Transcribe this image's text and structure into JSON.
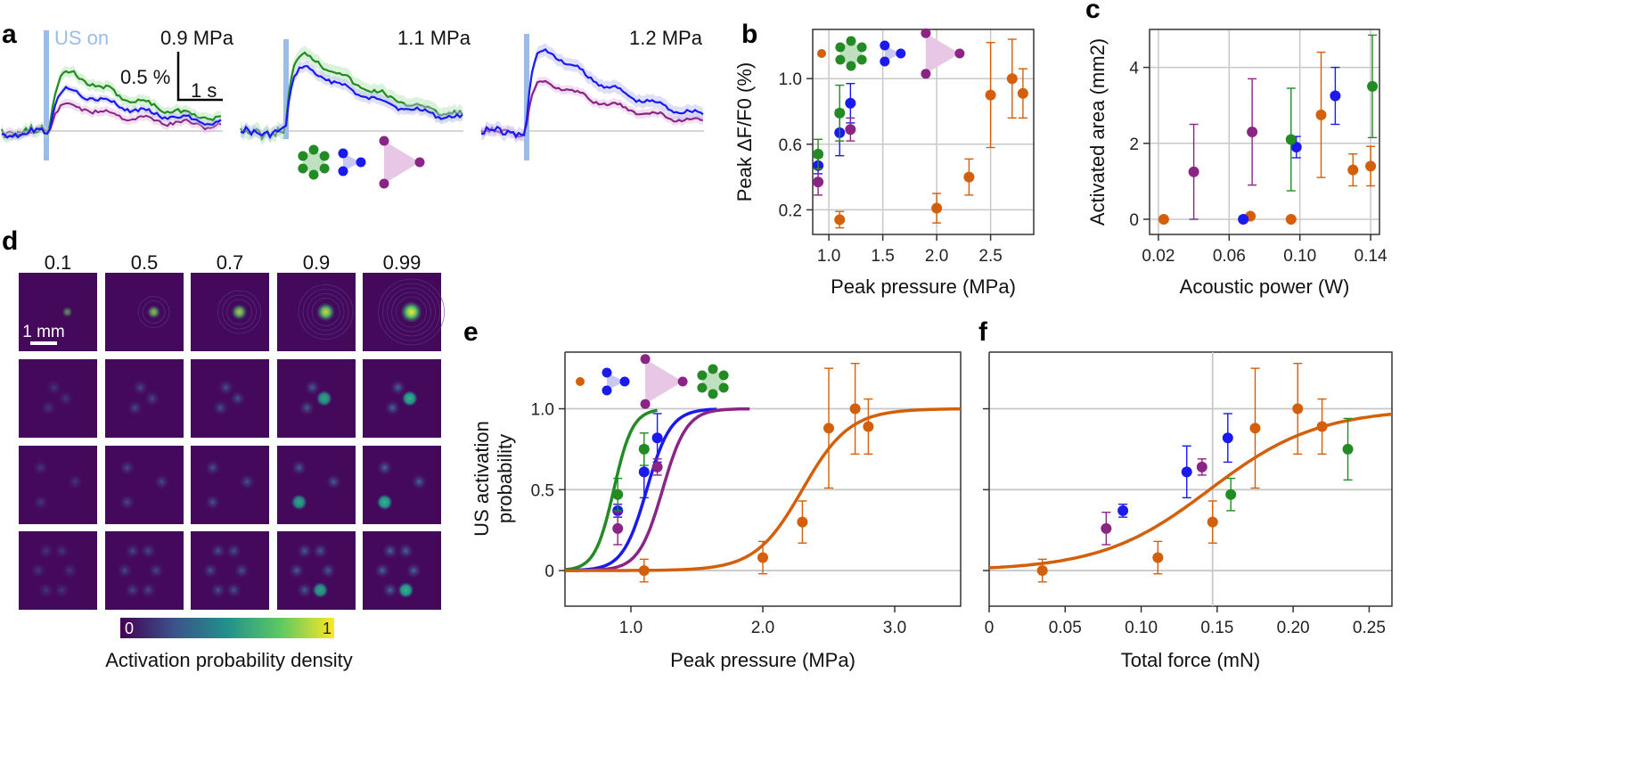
{
  "colors": {
    "orange": "#d45f0a",
    "blue": "#1a1aee",
    "purple": "#8a2586",
    "green": "#238b23",
    "grid": "#c8c8c8",
    "usbar": "#9bbce8"
  },
  "panel_labels": [
    "a",
    "b",
    "c",
    "d",
    "e",
    "f"
  ],
  "panel_a": {
    "us_label": "US on",
    "pressures": [
      "0.9 MPa",
      "1.1 MPa",
      "1.2 MPa"
    ],
    "scale_y": "0.5 %",
    "scale_x": "1 s"
  },
  "chart_data": [
    {
      "panel": "b",
      "type": "scatter",
      "xlabel": "Peak pressure (MPa)",
      "ylabel": "Peak ΔF/F0 (%)",
      "xlim": [
        0.85,
        2.9
      ],
      "ylim": [
        0.05,
        1.3
      ],
      "xticks": [
        "1.0",
        "1.5",
        "2.0",
        "2.5"
      ],
      "yticks": [
        "0.2",
        "0.6",
        "1.0"
      ],
      "series": [
        {
          "name": "single",
          "color": "orange",
          "points": [
            [
              1.1,
              0.14,
              0.05
            ],
            [
              2.0,
              0.21,
              0.09
            ],
            [
              2.3,
              0.4,
              0.11
            ],
            [
              2.5,
              0.9,
              0.32
            ],
            [
              2.7,
              1.0,
              0.24
            ],
            [
              2.8,
              0.91,
              0.15
            ]
          ]
        },
        {
          "name": "trimer-small",
          "color": "blue",
          "points": [
            [
              0.9,
              0.47,
              0.05
            ],
            [
              1.1,
              0.67,
              0.14
            ],
            [
              1.2,
              0.85,
              0.12
            ]
          ]
        },
        {
          "name": "trimer-large",
          "color": "purple",
          "points": [
            [
              0.9,
              0.37,
              0.08
            ],
            [
              1.2,
              0.69,
              0.07
            ]
          ]
        },
        {
          "name": "hexamer",
          "color": "green",
          "points": [
            [
              0.9,
              0.54,
              0.09
            ],
            [
              1.1,
              0.79,
              0.17
            ]
          ]
        }
      ]
    },
    {
      "panel": "c",
      "type": "scatter",
      "xlabel": "Acoustic power (W)",
      "ylabel": "Activated area (mm2)",
      "xlim": [
        0.015,
        0.145
      ],
      "ylim": [
        -0.4,
        5.0
      ],
      "xticks": [
        "0.02",
        "0.06",
        "0.10",
        "0.14"
      ],
      "yticks": [
        "0",
        "2",
        "4"
      ],
      "series": [
        {
          "name": "single",
          "color": "orange",
          "points": [
            [
              0.023,
              0,
              0
            ],
            [
              0.072,
              0.08,
              0
            ],
            [
              0.095,
              0,
              0
            ],
            [
              0.112,
              2.75,
              1.65
            ],
            [
              0.13,
              1.3,
              0.42
            ],
            [
              0.14,
              1.4,
              0.52
            ]
          ]
        },
        {
          "name": "trimer-small",
          "color": "blue",
          "points": [
            [
              0.068,
              0,
              0
            ],
            [
              0.098,
              1.9,
              0.28
            ],
            [
              0.12,
              3.25,
              0.75
            ]
          ]
        },
        {
          "name": "trimer-large",
          "color": "purple",
          "points": [
            [
              0.04,
              1.25,
              1.25
            ],
            [
              0.073,
              2.3,
              1.4
            ]
          ]
        },
        {
          "name": "hexamer",
          "color": "green",
          "points": [
            [
              0.095,
              2.1,
              1.35
            ],
            [
              0.141,
              3.5,
              1.35
            ]
          ]
        }
      ]
    },
    {
      "panel": "e",
      "type": "line",
      "xlabel": "Peak pressure (MPa)",
      "ylabel": "US activation probability",
      "xlim": [
        0.5,
        3.5
      ],
      "ylim": [
        -0.22,
        1.35
      ],
      "xticks": [
        "1.0",
        "2.0",
        "3.0"
      ],
      "yticks": [
        "0",
        "0.5",
        "1.0"
      ],
      "fits": [
        {
          "color": "green",
          "x0": 0.87,
          "k": 14,
          "xmax": 1.2
        },
        {
          "color": "blue",
          "x0": 1.12,
          "k": 11,
          "xmax": 1.65
        },
        {
          "color": "purple",
          "x0": 1.24,
          "k": 11,
          "xmax": 1.9
        },
        {
          "color": "orange",
          "x0": 2.3,
          "k": 5.6,
          "xmax": 3.5
        }
      ],
      "series": [
        {
          "name": "single",
          "color": "orange",
          "points": [
            [
              1.1,
              0,
              0.07
            ],
            [
              2.0,
              0.08,
              0.1
            ],
            [
              2.3,
              0.3,
              0.13
            ],
            [
              2.5,
              0.88,
              0.37
            ],
            [
              2.7,
              1.0,
              0.28
            ],
            [
              2.8,
              0.89,
              0.17
            ]
          ]
        },
        {
          "name": "trimer-small",
          "color": "blue",
          "points": [
            [
              0.9,
              0.37,
              0.04
            ],
            [
              1.1,
              0.61,
              0.16
            ],
            [
              1.2,
              0.82,
              0.15
            ]
          ]
        },
        {
          "name": "trimer-large",
          "color": "purple",
          "points": [
            [
              0.9,
              0.26,
              0.1
            ],
            [
              1.2,
              0.64,
              0.05
            ]
          ]
        },
        {
          "name": "hexamer",
          "color": "green",
          "points": [
            [
              0.9,
              0.47,
              0.1
            ],
            [
              1.1,
              0.75,
              0.1
            ]
          ]
        }
      ]
    },
    {
      "panel": "f",
      "type": "line",
      "xlabel": "Total force (mN)",
      "ylabel": "",
      "xlim": [
        0,
        0.265
      ],
      "ylim": [
        -0.22,
        1.35
      ],
      "xticks": [
        "0",
        "0.05",
        "0.10",
        "0.15",
        "0.20",
        "0.25"
      ],
      "yticks": [
        "0",
        "0.5",
        "1.0"
      ],
      "vline": 0.147,
      "fits": [
        {
          "color": "orange",
          "x0": 0.145,
          "k": 28,
          "xmax": 0.265
        }
      ],
      "series": [
        {
          "name": "single",
          "color": "orange",
          "points": [
            [
              0.035,
              0,
              0.07
            ],
            [
              0.111,
              0.08,
              0.1
            ],
            [
              0.147,
              0.3,
              0.13
            ],
            [
              0.175,
              0.88,
              0.37
            ],
            [
              0.203,
              1.0,
              0.28
            ],
            [
              0.219,
              0.89,
              0.17
            ]
          ]
        },
        {
          "name": "trimer-small",
          "color": "blue",
          "points": [
            [
              0.088,
              0.37,
              0.04
            ],
            [
              0.13,
              0.61,
              0.16
            ],
            [
              0.157,
              0.82,
              0.15
            ]
          ]
        },
        {
          "name": "trimer-large",
          "color": "purple",
          "points": [
            [
              0.077,
              0.26,
              0.1
            ],
            [
              0.14,
              0.64,
              0.05
            ]
          ]
        },
        {
          "name": "hexamer",
          "color": "green",
          "points": [
            [
              0.159,
              0.47,
              0.1
            ],
            [
              0.236,
              0.75,
              0.19
            ]
          ]
        }
      ]
    }
  ],
  "panel_d": {
    "columns": [
      "0.1",
      "0.5",
      "0.7",
      "0.9",
      "0.99"
    ],
    "colorbar_min": "0",
    "colorbar_max": "1",
    "colorbar_label": "Activation probability density",
    "scale_bar_label": "1 mm"
  }
}
